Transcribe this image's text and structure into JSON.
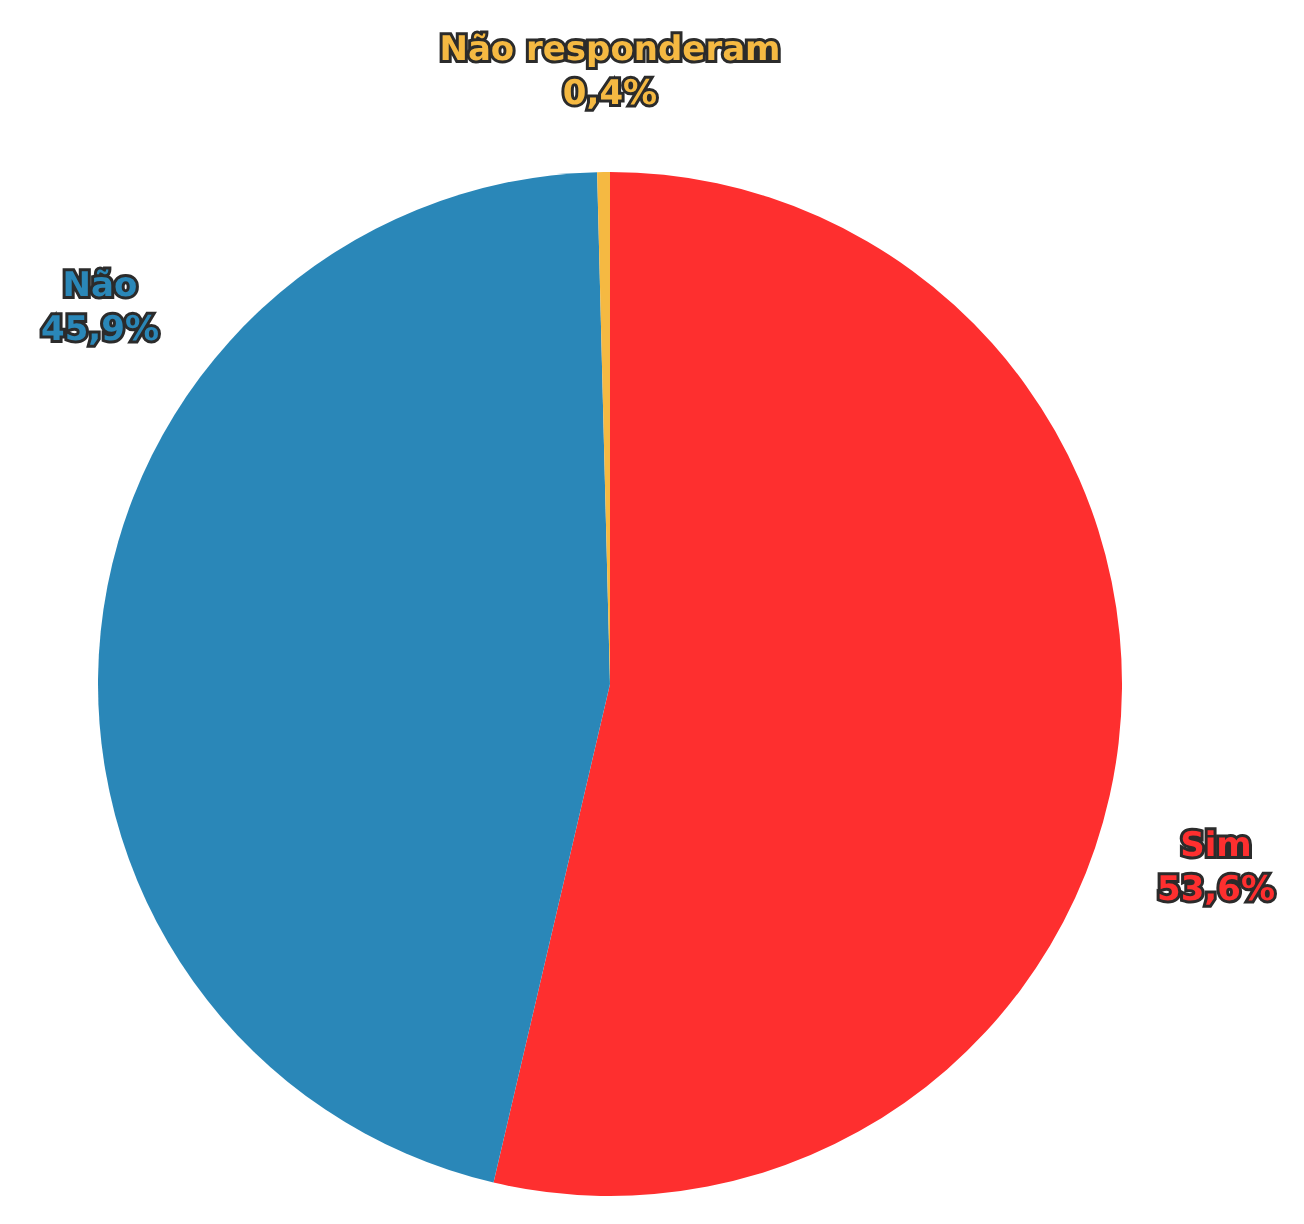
{
  "chart_data": {
    "type": "pie",
    "categories": [
      "Sim",
      "Não",
      "Não responderam"
    ],
    "values": [
      53.6,
      45.9,
      0.4
    ],
    "colors": [
      "#fe2f2f",
      "#2a87b8",
      "#f5b942"
    ],
    "value_labels": [
      "53,6%",
      "45,9%",
      "0,4%"
    ],
    "legend": false
  }
}
